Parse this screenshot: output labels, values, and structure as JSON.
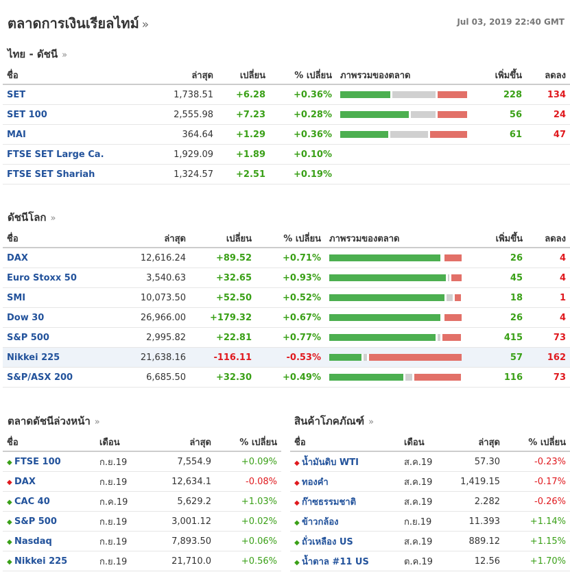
{
  "title": "ตลาดการเงินเรียลไทม์",
  "more": "»",
  "timestamp": "Jul 03, 2019 22:40 GMT",
  "thai": {
    "title": "ไทย - ดัชนี",
    "headers": {
      "name": "ชื่อ",
      "last": "ล่าสุด",
      "change": "เปลี่ยน",
      "pct": "% เปลี่ยน",
      "overview": "ภาพรวมของตลาด",
      "adv": "เพิ่มขึ้น",
      "dec": "ลดลง"
    },
    "rows": [
      {
        "name": "SET",
        "last": "1,738.51",
        "change": "+6.28",
        "pct": "+0.36%",
        "adv": "228",
        "dec": "134",
        "bar": [
          228,
          197,
          134
        ]
      },
      {
        "name": "SET 100",
        "last": "2,555.98",
        "change": "+7.23",
        "pct": "+0.28%",
        "adv": "56",
        "dec": "24",
        "bar": [
          56,
          20,
          24
        ]
      },
      {
        "name": "MAI",
        "last": "364.64",
        "change": "+1.29",
        "pct": "+0.36%",
        "adv": "61",
        "dec": "47",
        "bar": [
          61,
          49,
          47
        ]
      },
      {
        "name": "FTSE SET Large Ca.",
        "last": "1,929.09",
        "change": "+1.89",
        "pct": "+0.10%",
        "adv": "",
        "dec": "",
        "bar": null
      },
      {
        "name": "FTSE SET Shariah",
        "last": "1,324.57",
        "change": "+2.51",
        "pct": "+0.19%",
        "adv": "",
        "dec": "",
        "bar": null
      }
    ]
  },
  "world": {
    "title": "ดัชนีโลก",
    "headers": {
      "name": "ชื่อ",
      "last": "ล่าสุด",
      "change": "เปลี่ยน",
      "pct": "% เปลี่ยน",
      "overview": "ภาพรวมของตลาด",
      "adv": "เพิ่มขึ้น",
      "dec": "ลดลง"
    },
    "rows": [
      {
        "name": "DAX",
        "last": "12,616.24",
        "change": "+89.52",
        "pct": "+0.71%",
        "adv": "26",
        "dec": "4",
        "bar": [
          26,
          0,
          4
        ]
      },
      {
        "name": "Euro Stoxx 50",
        "last": "3,540.63",
        "change": "+32.65",
        "pct": "+0.93%",
        "adv": "45",
        "dec": "4",
        "bar": [
          45,
          0.5,
          4
        ]
      },
      {
        "name": "SMI",
        "last": "10,073.50",
        "change": "+52.50",
        "pct": "+0.52%",
        "adv": "18",
        "dec": "1",
        "bar": [
          18,
          1,
          1
        ]
      },
      {
        "name": "Dow 30",
        "last": "26,966.00",
        "change": "+179.32",
        "pct": "+0.67%",
        "adv": "26",
        "dec": "4",
        "bar": [
          26,
          0,
          4
        ]
      },
      {
        "name": "S&P 500",
        "last": "2,995.82",
        "change": "+22.81",
        "pct": "+0.77%",
        "adv": "415",
        "dec": "73",
        "bar": [
          415,
          12,
          73
        ]
      },
      {
        "name": "Nikkei 225",
        "last": "21,638.16",
        "change": "-116.11",
        "pct": "-0.53%",
        "adv": "57",
        "dec": "162",
        "bar": [
          57,
          6,
          162
        ]
      },
      {
        "name": "S&P/ASX 200",
        "last": "6,685.50",
        "change": "+32.30",
        "pct": "+0.49%",
        "adv": "116",
        "dec": "73",
        "bar": [
          116,
          11,
          73
        ]
      }
    ]
  },
  "futures": {
    "title": "ตลาดดัชนีล่วงหน้า",
    "headers": {
      "name": "ชื่อ",
      "month": "เดือน",
      "last": "ล่าสุด",
      "pct": "% เปลี่ยน"
    },
    "rows": [
      {
        "name": "FTSE 100",
        "month": "ก.ย.19",
        "last": "7,554.9",
        "pct": "+0.09%",
        "dir": "up"
      },
      {
        "name": "DAX",
        "month": "ก.ย.19",
        "last": "12,634.1",
        "pct": "-0.08%",
        "dir": "down"
      },
      {
        "name": "CAC 40",
        "month": "ก.ค.19",
        "last": "5,629.2",
        "pct": "+1.03%",
        "dir": "up"
      },
      {
        "name": "S&P 500",
        "month": "ก.ย.19",
        "last": "3,001.12",
        "pct": "+0.02%",
        "dir": "up"
      },
      {
        "name": "Nasdaq",
        "month": "ก.ย.19",
        "last": "7,893.50",
        "pct": "+0.06%",
        "dir": "up"
      },
      {
        "name": "Nikkei 225",
        "month": "ก.ย.19",
        "last": "21,710.0",
        "pct": "+0.56%",
        "dir": "up"
      }
    ]
  },
  "commodities": {
    "title": "สินค้าโภคภัณฑ์",
    "headers": {
      "name": "ชื่อ",
      "month": "เดือน",
      "last": "ล่าสุด",
      "pct": "% เปลี่ยน"
    },
    "rows": [
      {
        "name": "น้ำมันดิบ WTI",
        "month": "ส.ค.19",
        "last": "57.30",
        "pct": "-0.23%",
        "dir": "down"
      },
      {
        "name": "ทองคำ",
        "month": "ส.ค.19",
        "last": "1,419.15",
        "pct": "-0.17%",
        "dir": "down"
      },
      {
        "name": "ก๊าซธรรมชาติ",
        "month": "ส.ค.19",
        "last": "2.282",
        "pct": "-0.26%",
        "dir": "down"
      },
      {
        "name": "ข้าวกล้อง",
        "month": "ก.ย.19",
        "last": "11.393",
        "pct": "+1.14%",
        "dir": "up"
      },
      {
        "name": "ถั่วเหลือง US",
        "month": "ส.ค.19",
        "last": "889.12",
        "pct": "+1.15%",
        "dir": "up"
      },
      {
        "name": "น้ำตาล #11 US",
        "month": "ต.ค.19",
        "last": "12.56",
        "pct": "+1.70%",
        "dir": "up"
      }
    ]
  },
  "colors": {
    "up": "#3aa017",
    "down": "#e0191e",
    "link": "#22529b",
    "bar_green": "#4caf50",
    "bar_gray": "#d0d0d0",
    "bar_red": "#e27068"
  },
  "icons": {
    "up": "up-arrow-icon",
    "down": "down-arrow-icon"
  }
}
